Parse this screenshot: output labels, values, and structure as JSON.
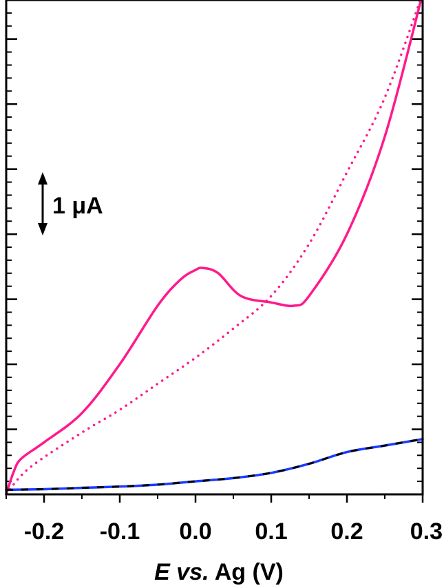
{
  "chart_data": {
    "type": "line",
    "xlabel_parts": {
      "italic": "E vs.",
      "rest": "Ag (V)"
    },
    "ylabel": "",
    "xlim": [
      -0.25,
      0.3
    ],
    "x_ticks": [
      -0.2,
      -0.1,
      0.0,
      0.1,
      0.2,
      0.3
    ],
    "x_tick_labels": [
      "-0.2",
      "-0.1",
      "0.0",
      "0.1",
      "0.2",
      "0.3"
    ],
    "ylim": [
      0,
      7.6
    ],
    "y_major_ticks": [
      1,
      2,
      3,
      4,
      5,
      6,
      7
    ],
    "grid": false,
    "legend": "none",
    "scale_bar": {
      "label": "1 μA",
      "value": 1
    },
    "series": [
      {
        "style": "solid",
        "color": "#ff1a8c",
        "x": [
          -0.25,
          -0.24,
          -0.23,
          -0.2,
          -0.15,
          -0.1,
          -0.05,
          -0.02,
          0.0,
          0.01,
          0.03,
          0.06,
          0.1,
          0.13,
          0.15,
          0.2,
          0.25,
          0.3
        ],
        "y": [
          0.0,
          0.35,
          0.55,
          0.8,
          1.25,
          2.0,
          2.9,
          3.3,
          3.45,
          3.48,
          3.4,
          3.05,
          2.95,
          2.9,
          3.05,
          4.0,
          5.5,
          7.7
        ]
      },
      {
        "style": "dotted",
        "color": "#ff1a8c",
        "x": [
          -0.25,
          -0.22,
          -0.15,
          -0.1,
          -0.05,
          0.0,
          0.05,
          0.1,
          0.15,
          0.2,
          0.25,
          0.3
        ],
        "y": [
          0.0,
          0.4,
          0.95,
          1.3,
          1.7,
          2.1,
          2.55,
          3.05,
          3.85,
          4.95,
          6.1,
          7.7
        ]
      },
      {
        "style": "solid",
        "color": "#1a3cff",
        "x": [
          -0.25,
          -0.2,
          -0.15,
          -0.1,
          -0.05,
          0.0,
          0.05,
          0.1,
          0.15,
          0.2,
          0.25,
          0.3
        ],
        "y": [
          0.07,
          0.08,
          0.1,
          0.12,
          0.15,
          0.2,
          0.25,
          0.33,
          0.47,
          0.65,
          0.75,
          0.85
        ]
      },
      {
        "style": "dashed",
        "color": "#000000",
        "x": [
          -0.25,
          -0.2,
          -0.15,
          -0.1,
          -0.05,
          0.0,
          0.05,
          0.1,
          0.15,
          0.2,
          0.25,
          0.3
        ],
        "y": [
          0.07,
          0.08,
          0.1,
          0.12,
          0.15,
          0.2,
          0.25,
          0.33,
          0.47,
          0.65,
          0.75,
          0.85
        ]
      }
    ]
  }
}
